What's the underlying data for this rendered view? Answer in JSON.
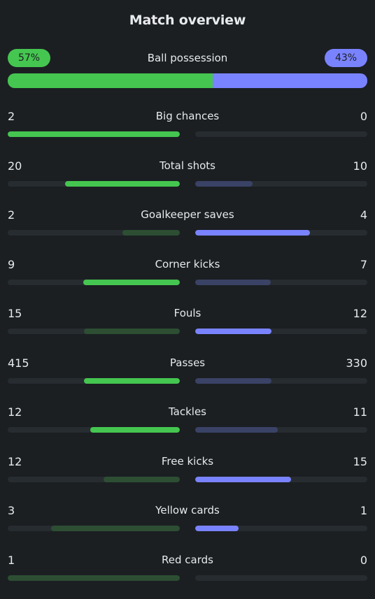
{
  "title": "Match overview",
  "colors": {
    "home": "#45c650",
    "home_dim": "#2d4e33",
    "away": "#7a83ff",
    "away_dim": "#3a4266",
    "track": "#272c31"
  },
  "possession": {
    "label": "Ball possession",
    "home": "57%",
    "away": "43%",
    "home_value": 57,
    "away_value": 43
  },
  "stats": [
    {
      "label": "Big chances",
      "home": "2",
      "away": "0",
      "home_fill": 1.0,
      "away_fill": 0.0,
      "winner": "home"
    },
    {
      "label": "Total shots",
      "home": "20",
      "away": "10",
      "home_fill": 0.667,
      "away_fill": 0.333,
      "winner": "home"
    },
    {
      "label": "Goalkeeper saves",
      "home": "2",
      "away": "4",
      "home_fill": 0.333,
      "away_fill": 0.667,
      "winner": "away"
    },
    {
      "label": "Corner kicks",
      "home": "9",
      "away": "7",
      "home_fill": 0.5625,
      "away_fill": 0.4375,
      "winner": "home"
    },
    {
      "label": "Fouls",
      "home": "15",
      "away": "12",
      "home_fill": 0.556,
      "away_fill": 0.444,
      "winner": "away"
    },
    {
      "label": "Passes",
      "home": "415",
      "away": "330",
      "home_fill": 0.557,
      "away_fill": 0.443,
      "winner": "home"
    },
    {
      "label": "Tackles",
      "home": "12",
      "away": "11",
      "home_fill": 0.522,
      "away_fill": 0.478,
      "winner": "home"
    },
    {
      "label": "Free kicks",
      "home": "12",
      "away": "15",
      "home_fill": 0.444,
      "away_fill": 0.556,
      "winner": "away"
    },
    {
      "label": "Yellow cards",
      "home": "3",
      "away": "1",
      "home_fill": 0.75,
      "away_fill": 0.25,
      "winner": "away"
    },
    {
      "label": "Red cards",
      "home": "1",
      "away": "0",
      "home_fill": 1.0,
      "away_fill": 0.0,
      "winner": "away"
    }
  ]
}
